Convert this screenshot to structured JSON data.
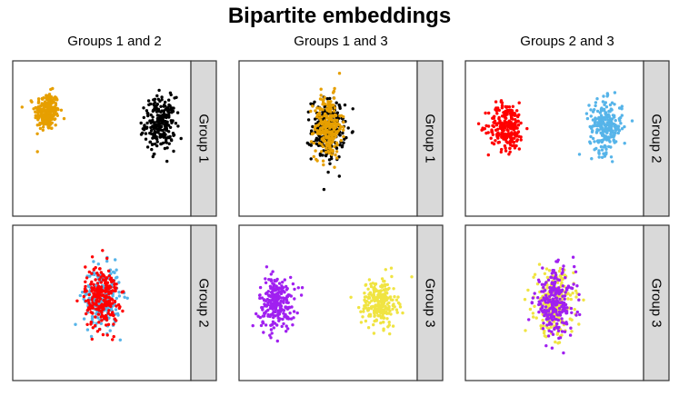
{
  "title": "Bipartite embeddings",
  "chart_data": [
    {
      "type": "scatter",
      "column_title": "Groups 1 and 2",
      "strip_label": "Group 1",
      "clusters": [
        {
          "color": "#E69F00",
          "center": [
            -0.8,
            0.45
          ],
          "spread": [
            0.09,
            0.16
          ],
          "n": 240
        },
        {
          "color": "#000000",
          "center": [
            0.85,
            0.25
          ],
          "spread": [
            0.11,
            0.22
          ],
          "n": 240
        }
      ]
    },
    {
      "type": "scatter",
      "column_title": "Groups 1 and 3",
      "strip_label": "Group 1",
      "clusters": [
        {
          "color": "#000000",
          "center": [
            0.0,
            0.15
          ],
          "spread": [
            0.12,
            0.26
          ],
          "n": 240
        },
        {
          "color": "#E69F00",
          "center": [
            0.0,
            0.2
          ],
          "spread": [
            0.1,
            0.26
          ],
          "n": 240
        }
      ]
    },
    {
      "type": "scatter",
      "column_title": "Groups 2 and 3",
      "strip_label": "Group 2",
      "clusters": [
        {
          "color": "#FF0000",
          "center": [
            -0.7,
            0.2
          ],
          "spread": [
            0.13,
            0.2
          ],
          "n": 240
        },
        {
          "color": "#56B4E9",
          "center": [
            0.75,
            0.2
          ],
          "spread": [
            0.12,
            0.22
          ],
          "n": 240
        }
      ]
    },
    {
      "type": "scatter",
      "column_title": "",
      "strip_label": "Group 2",
      "clusters": [
        {
          "color": "#56B4E9",
          "center": [
            0.0,
            0.1
          ],
          "spread": [
            0.13,
            0.25
          ],
          "n": 240
        },
        {
          "color": "#FF0000",
          "center": [
            0.0,
            0.1
          ],
          "spread": [
            0.12,
            0.27
          ],
          "n": 240
        }
      ]
    },
    {
      "type": "scatter",
      "column_title": "",
      "strip_label": "Group 3",
      "clusters": [
        {
          "color": "#A020F0",
          "center": [
            -0.75,
            0.0
          ],
          "spread": [
            0.13,
            0.22
          ],
          "n": 240
        },
        {
          "color": "#F0E442",
          "center": [
            0.75,
            0.0
          ],
          "spread": [
            0.13,
            0.2
          ],
          "n": 240
        }
      ]
    },
    {
      "type": "scatter",
      "column_title": "",
      "strip_label": "Group 3",
      "clusters": [
        {
          "color": "#F0E442",
          "center": [
            0.0,
            0.0
          ],
          "spread": [
            0.14,
            0.27
          ],
          "n": 240
        },
        {
          "color": "#A020F0",
          "center": [
            0.0,
            0.0
          ],
          "spread": [
            0.15,
            0.27
          ],
          "n": 240
        }
      ]
    }
  ]
}
